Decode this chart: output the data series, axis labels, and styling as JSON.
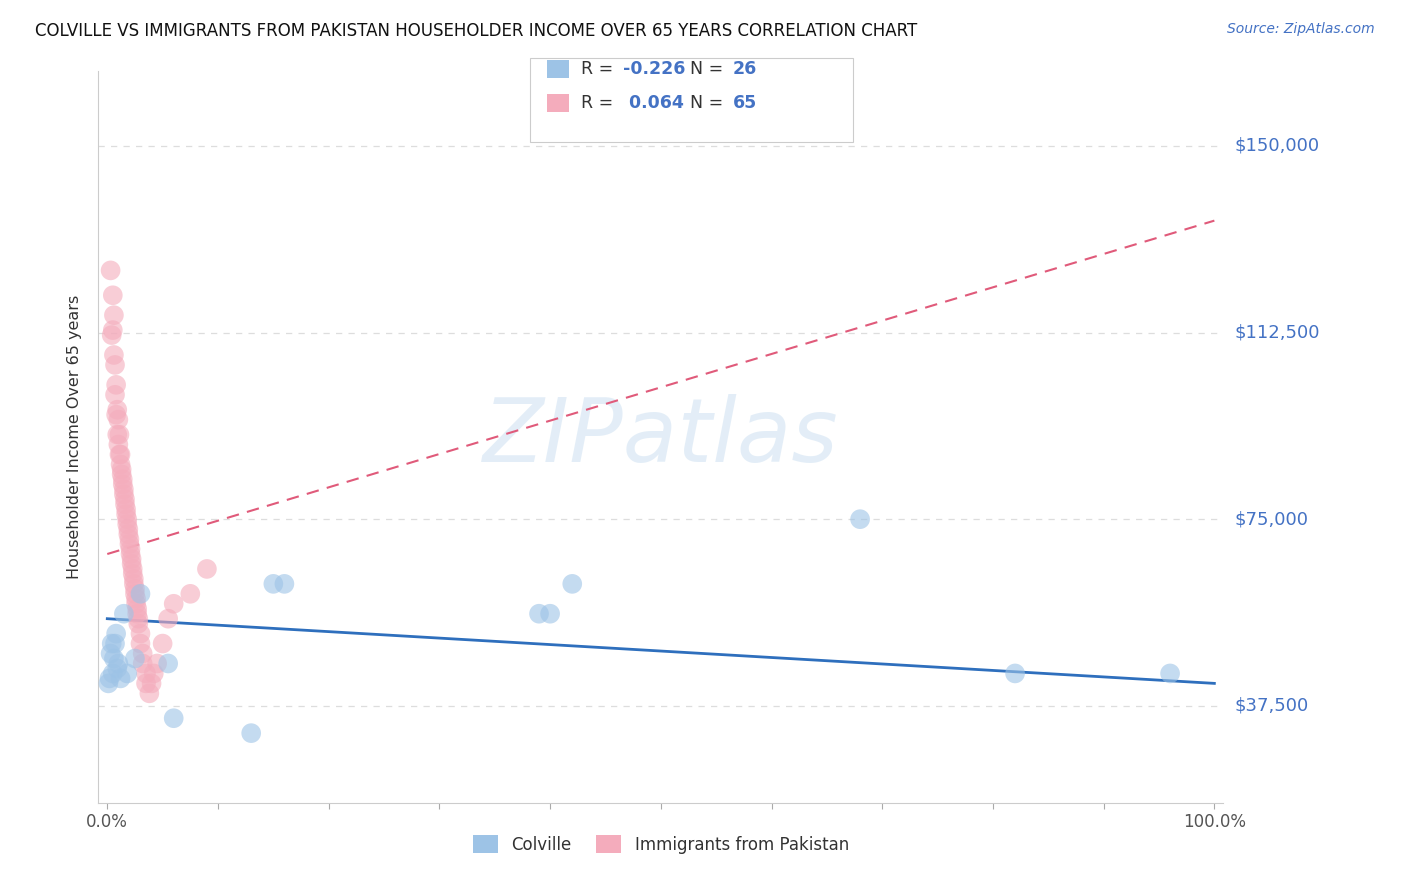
{
  "title": "COLVILLE VS IMMIGRANTS FROM PAKISTAN HOUSEHOLDER INCOME OVER 65 YEARS CORRELATION CHART",
  "source": "Source: ZipAtlas.com",
  "ylabel": "Householder Income Over 65 years",
  "ylim": [
    18000,
    165000
  ],
  "xlim": [
    -0.008,
    1.008
  ],
  "yticks": [
    37500,
    75000,
    112500,
    150000
  ],
  "ytick_labels": [
    "$37,500",
    "$75,000",
    "$112,500",
    "$150,000"
  ],
  "xtick_positions": [
    0.0,
    0.1,
    0.2,
    0.3,
    0.4,
    0.5,
    0.6,
    0.7,
    0.8,
    0.9,
    1.0
  ],
  "background_color": "#ffffff",
  "grid_color": "#dddddd",
  "colville_color": "#9dc3e6",
  "pakistan_color": "#f4acbc",
  "colville_line_color": "#2e6fbd",
  "pakistan_line_color": "#e05a7a",
  "colville_R": -0.226,
  "colville_N": 26,
  "pakistan_R": 0.064,
  "pakistan_N": 65,
  "legend_text_color": "#333333",
  "legend_value_color": "#4472c4",
  "right_label_color": "#4472c4",
  "watermark": "ZIPatlas",
  "watermark_color": "#c8ddf0",
  "colville_x": [
    0.001,
    0.002,
    0.003,
    0.004,
    0.005,
    0.006,
    0.007,
    0.008,
    0.009,
    0.01,
    0.012,
    0.015,
    0.018,
    0.025,
    0.03,
    0.055,
    0.06,
    0.13,
    0.15,
    0.16,
    0.39,
    0.4,
    0.42,
    0.68,
    0.82,
    0.96
  ],
  "colville_y": [
    42000,
    43000,
    48000,
    50000,
    44000,
    47000,
    50000,
    52000,
    45000,
    46000,
    43000,
    56000,
    44000,
    47000,
    60000,
    46000,
    35000,
    32000,
    62000,
    62000,
    56000,
    56000,
    62000,
    75000,
    44000,
    44000
  ],
  "pakistan_x": [
    0.003,
    0.004,
    0.005,
    0.005,
    0.006,
    0.006,
    0.007,
    0.007,
    0.008,
    0.008,
    0.009,
    0.009,
    0.01,
    0.01,
    0.011,
    0.011,
    0.012,
    0.012,
    0.013,
    0.013,
    0.014,
    0.014,
    0.015,
    0.015,
    0.016,
    0.016,
    0.017,
    0.017,
    0.018,
    0.018,
    0.019,
    0.019,
    0.02,
    0.02,
    0.021,
    0.021,
    0.022,
    0.022,
    0.023,
    0.023,
    0.024,
    0.024,
    0.025,
    0.025,
    0.026,
    0.026,
    0.027,
    0.027,
    0.028,
    0.028,
    0.03,
    0.03,
    0.032,
    0.032,
    0.035,
    0.035,
    0.038,
    0.04,
    0.042,
    0.045,
    0.05,
    0.055,
    0.06,
    0.075,
    0.09
  ],
  "pakistan_y": [
    125000,
    112000,
    113000,
    120000,
    108000,
    116000,
    100000,
    106000,
    96000,
    102000,
    92000,
    97000,
    90000,
    95000,
    88000,
    92000,
    86000,
    88000,
    84000,
    85000,
    82000,
    83000,
    80000,
    81000,
    78000,
    79000,
    76000,
    77000,
    74000,
    75000,
    72000,
    73000,
    70000,
    71000,
    68000,
    69000,
    66000,
    67000,
    64000,
    65000,
    62000,
    63000,
    60000,
    61000,
    58000,
    59000,
    56000,
    57000,
    54000,
    55000,
    50000,
    52000,
    46000,
    48000,
    42000,
    44000,
    40000,
    42000,
    44000,
    46000,
    50000,
    55000,
    58000,
    60000,
    65000
  ]
}
